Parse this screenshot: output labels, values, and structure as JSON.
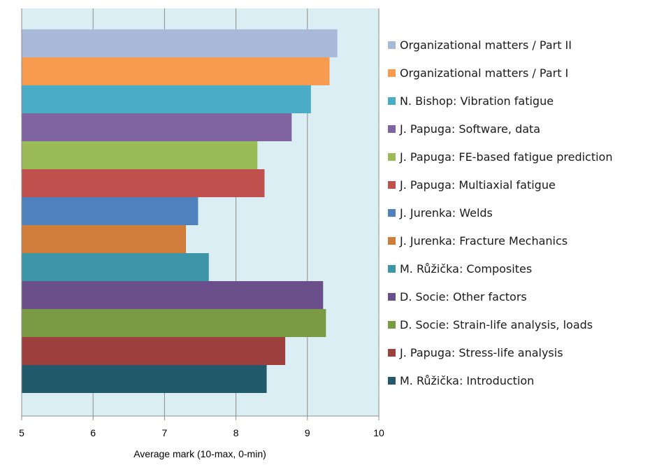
{
  "chart_data": {
    "type": "bar",
    "orientation": "horizontal",
    "title": "",
    "xlabel": "Average mark (10-max, 0-min)",
    "ylabel": "",
    "xlim": [
      5,
      10
    ],
    "xticks": [
      "5",
      "6",
      "7",
      "8",
      "9",
      "10"
    ],
    "grid": "vertical",
    "plot_background": "#dbeef4",
    "legend_position": "right",
    "categories": [
      "Organizational matters / Part II",
      "Organizational matters / Part I",
      "N. Bishop: Vibration fatigue",
      "J. Papuga: Software, data",
      "J. Papuga: FE-based fatigue prediction",
      "J. Papuga: Multiaxial fatigue",
      "J. Jurenka: Welds",
      "J. Jurenka: Fracture Mechanics",
      "M. Růžička: Composites",
      "D. Socie: Other factors",
      "D. Socie:  Strain-life analysis, loads",
      "J. Papuga: Stress-life analysis",
      "M. Růžička: Introduction"
    ],
    "values": [
      9.42,
      9.31,
      9.05,
      8.78,
      8.3,
      8.4,
      7.47,
      7.3,
      7.62,
      9.22,
      9.26,
      8.69,
      8.43
    ],
    "colors": [
      "#a9b9d9",
      "#f79c4f",
      "#4bacc6",
      "#8064a2",
      "#9bbb59",
      "#c0504d",
      "#4f81bd",
      "#d07d3b",
      "#3d96a8",
      "#6a4f8a",
      "#7b9a44",
      "#9c3f3d",
      "#235a6b"
    ]
  }
}
